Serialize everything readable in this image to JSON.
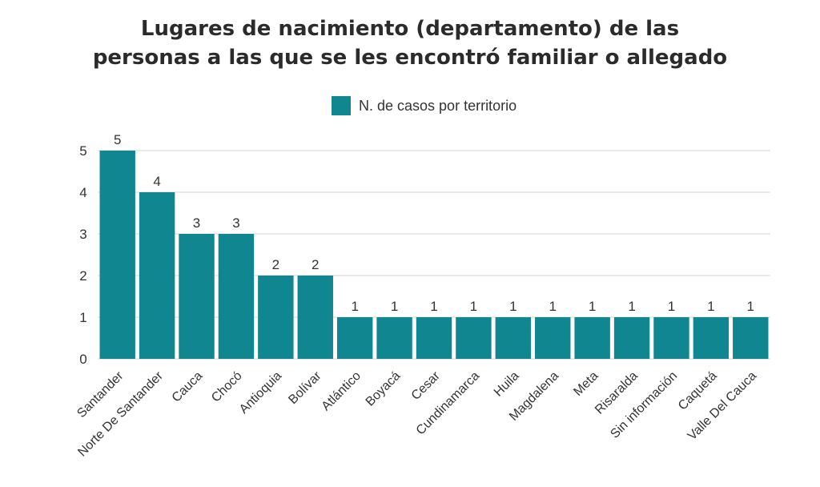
{
  "title_line1": "Lugares de nacimiento (departamento) de las",
  "title_line2": "personas a las que se les encontró familiar o allegado",
  "colors": {
    "bar": "#108790",
    "grid": "#d6d6d6",
    "text": "#333333"
  },
  "chart_data": {
    "type": "bar",
    "title": "Lugares de nacimiento (departamento) de las personas a las que se les encontró familiar o allegado",
    "categories": [
      "Santander",
      "Norte De Santander",
      "Cauca",
      "Chocó",
      "Antioquia",
      "Bolívar",
      "Atlántico",
      "Boyacá",
      "Cesar",
      "Cundinamarca",
      "Huila",
      "Magdalena",
      "Meta",
      "Risaralda",
      "Sin información",
      "Caquetá",
      "Valle Del Cauca"
    ],
    "series": [
      {
        "name": "N. de casos por territorio",
        "values": [
          5,
          4,
          3,
          3,
          2,
          2,
          1,
          1,
          1,
          1,
          1,
          1,
          1,
          1,
          1,
          1,
          1
        ]
      }
    ],
    "yticks": [
      0,
      1,
      2,
      3,
      4,
      5
    ],
    "ylim": [
      0,
      5
    ],
    "xlabel": "",
    "ylabel": "",
    "grid": true,
    "legend_position": "top"
  }
}
